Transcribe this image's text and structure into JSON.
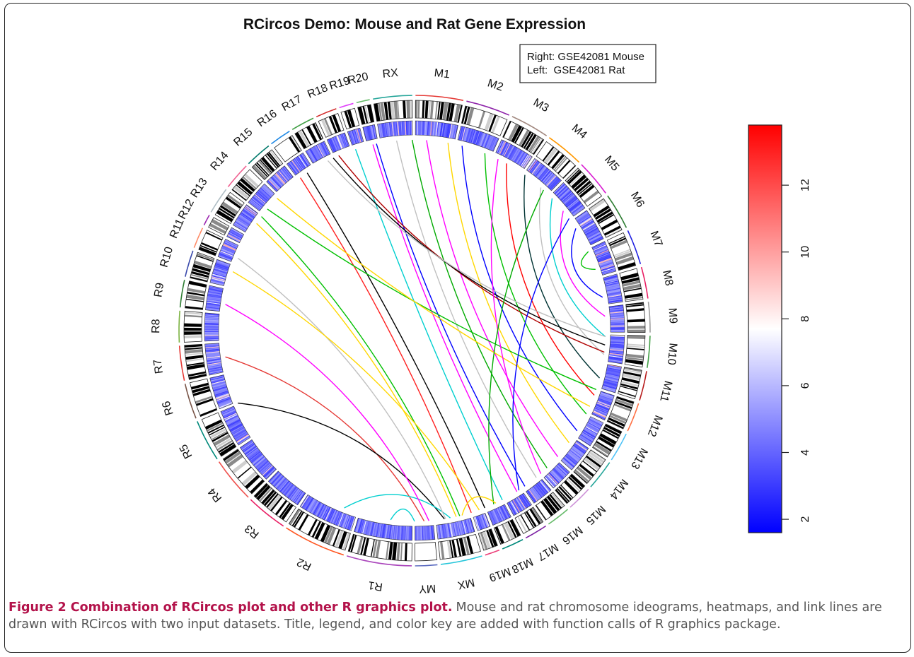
{
  "title": "RCircos Demo: Mouse and Rat Gene Expression",
  "legend": {
    "lines": [
      "Right: GSE42081 Mouse",
      "Left:  GSE42081 Rat"
    ]
  },
  "caption": {
    "lead": "Figure 2 Combination of RCircos plot and other R graphics plot.",
    "body": "Mouse and rat chromosome ideograms, heatmaps, and link lines are drawn with RCircos with two input datasets. Title, legend, and color key are added with function calls of R graphics package."
  },
  "chart_data": {
    "type": "circos",
    "title": "RCircos Demo: Mouse and Rat Gene Expression",
    "chromosomes": [
      {
        "name": "M1",
        "length": 195,
        "color": "#e53935"
      },
      {
        "name": "M2",
        "length": 182,
        "color": "#8e24aa"
      },
      {
        "name": "M3",
        "length": 160,
        "color": "#a1887f"
      },
      {
        "name": "M4",
        "length": 157,
        "color": "#ff9800"
      },
      {
        "name": "M5",
        "length": 152,
        "color": "#d81bd1"
      },
      {
        "name": "M6",
        "length": 150,
        "color": "#2e7d32"
      },
      {
        "name": "M7",
        "length": 145,
        "color": "#1e1ee0"
      },
      {
        "name": "M8",
        "length": 130,
        "color": "#e91e63"
      },
      {
        "name": "M9",
        "length": 125,
        "color": "#9e9e9e"
      },
      {
        "name": "M10",
        "length": 131,
        "color": "#43a047"
      },
      {
        "name": "M11",
        "length": 122,
        "color": "#b71c1c"
      },
      {
        "name": "M12",
        "length": 120,
        "color": "#ff7043"
      },
      {
        "name": "M13",
        "length": 121,
        "color": "#4fc3f7"
      },
      {
        "name": "M14",
        "length": 125,
        "color": "#26a69a"
      },
      {
        "name": "M15",
        "length": 104,
        "color": "#ce93d8"
      },
      {
        "name": "M16",
        "length": 98,
        "color": "#66bb6a"
      },
      {
        "name": "M17",
        "length": 95,
        "color": "#7b1fa2"
      },
      {
        "name": "M18",
        "length": 91,
        "color": "#00897b"
      },
      {
        "name": "M19",
        "length": 61,
        "color": "#ec407a"
      },
      {
        "name": "MX",
        "length": 171,
        "color": "#26c6da"
      },
      {
        "name": "MY",
        "length": 91,
        "color": "#5c6bc0"
      },
      {
        "name": "R1",
        "length": 267,
        "color": "#ab47bc"
      },
      {
        "name": "R2",
        "length": 258,
        "color": "#ff5722"
      },
      {
        "name": "R3",
        "length": 171,
        "color": "#e91e63"
      },
      {
        "name": "R4",
        "length": 187,
        "color": "#ef5350"
      },
      {
        "name": "R5",
        "length": 173,
        "color": "#00897b"
      },
      {
        "name": "R6",
        "length": 147,
        "color": "#795548"
      },
      {
        "name": "R7",
        "length": 143,
        "color": "#e53935"
      },
      {
        "name": "R8",
        "length": 129,
        "color": "#7cb342"
      },
      {
        "name": "R9",
        "length": 113,
        "color": "#2e7d32"
      },
      {
        "name": "R10",
        "length": 110,
        "color": "#3949ab"
      },
      {
        "name": "R11",
        "length": 87,
        "color": "#ff8a65"
      },
      {
        "name": "R12",
        "length": 46,
        "color": "#9c27b0"
      },
      {
        "name": "R13",
        "length": 111,
        "color": "#b0bec5"
      },
      {
        "name": "R14",
        "length": 112,
        "color": "#f06292"
      },
      {
        "name": "R15",
        "length": 109,
        "color": "#00796b"
      },
      {
        "name": "R16",
        "length": 90,
        "color": "#1e88e5"
      },
      {
        "name": "R17",
        "length": 97,
        "color": "#43a047"
      },
      {
        "name": "R18",
        "length": 87,
        "color": "#d32f2f"
      },
      {
        "name": "R19",
        "length": 59,
        "color": "#e040fb"
      },
      {
        "name": "R20",
        "length": 55,
        "color": "#66bb6a"
      },
      {
        "name": "RX",
        "length": 160,
        "color": "#26a69a"
      }
    ],
    "colorkey": {
      "min": 1.6,
      "max": 13.8,
      "ticks": [
        2,
        4,
        6,
        8,
        10,
        12
      ],
      "colors": [
        "#0000ff",
        "#ffffff",
        "#ff0000"
      ]
    },
    "links": [
      {
        "from": 0.492,
        "to": 0.728,
        "color": "#e53935"
      },
      {
        "from": 0.475,
        "to": 0.688,
        "color": "#000000"
      },
      {
        "from": 0.47,
        "to": 0.56,
        "color": "#00cfcf"
      },
      {
        "from": 0.488,
        "to": 0.772,
        "color": "#ff00ff"
      },
      {
        "from": 0.474,
        "to": 0.812,
        "color": "#c0c0c0"
      },
      {
        "from": 0.462,
        "to": 0.852,
        "color": "#00c000"
      },
      {
        "from": 0.465,
        "to": 0.845,
        "color": "#ffd700"
      },
      {
        "from": 0.452,
        "to": 0.898,
        "color": "#ff2020"
      },
      {
        "from": 0.44,
        "to": 0.905,
        "color": "#000000"
      },
      {
        "from": 0.424,
        "to": 0.95,
        "color": "#00cfcf"
      },
      {
        "from": 0.41,
        "to": 0.965,
        "color": "#ff00ff"
      },
      {
        "from": 0.402,
        "to": 0.968,
        "color": "#0000ff"
      },
      {
        "from": 0.39,
        "to": 0.985,
        "color": "#c0c0c0"
      },
      {
        "from": 0.378,
        "to": 0.998,
        "color": "#00aa00"
      },
      {
        "from": 0.365,
        "to": 0.01,
        "color": "#ff00ff"
      },
      {
        "from": 0.35,
        "to": 0.028,
        "color": "#ffd700"
      },
      {
        "from": 0.338,
        "to": 0.04,
        "color": "#0000ff"
      },
      {
        "from": 0.322,
        "to": 0.06,
        "color": "#00c000"
      },
      {
        "from": 0.305,
        "to": 0.08,
        "color": "#ff0000"
      },
      {
        "from": 0.29,
        "to": 0.098,
        "color": "#003333"
      },
      {
        "from": 0.27,
        "to": 0.115,
        "color": "#c0c0c0"
      },
      {
        "from": 0.255,
        "to": 0.128,
        "color": "#00cfcf"
      },
      {
        "from": 0.238,
        "to": 0.142,
        "color": "#ff00ff"
      },
      {
        "from": 0.222,
        "to": 0.16,
        "color": "#0000ff"
      },
      {
        "from": 0.198,
        "to": 0.182,
        "color": "#00c000"
      },
      {
        "from": 0.268,
        "to": 0.935,
        "color": "#b00000"
      },
      {
        "from": 0.262,
        "to": 0.93,
        "color": "#000000"
      },
      {
        "from": 0.255,
        "to": 0.925,
        "color": "#c0c0c0"
      },
      {
        "from": 0.3,
        "to": 0.86,
        "color": "#00c000"
      },
      {
        "from": 0.315,
        "to": 0.872,
        "color": "#ffd700"
      },
      {
        "from": 0.385,
        "to": 0.072,
        "color": "#ff00ff"
      },
      {
        "from": 0.408,
        "to": 0.15,
        "color": "#0000ff"
      },
      {
        "from": 0.432,
        "to": 0.118,
        "color": "#00aa00"
      },
      {
        "from": 0.445,
        "to": 0.8,
        "color": "#ffd700"
      },
      {
        "from": 0.46,
        "to": 0.43,
        "color": "#ffd700"
      },
      {
        "from": 0.5,
        "to": 0.52,
        "color": "#00cfcf"
      }
    ]
  }
}
